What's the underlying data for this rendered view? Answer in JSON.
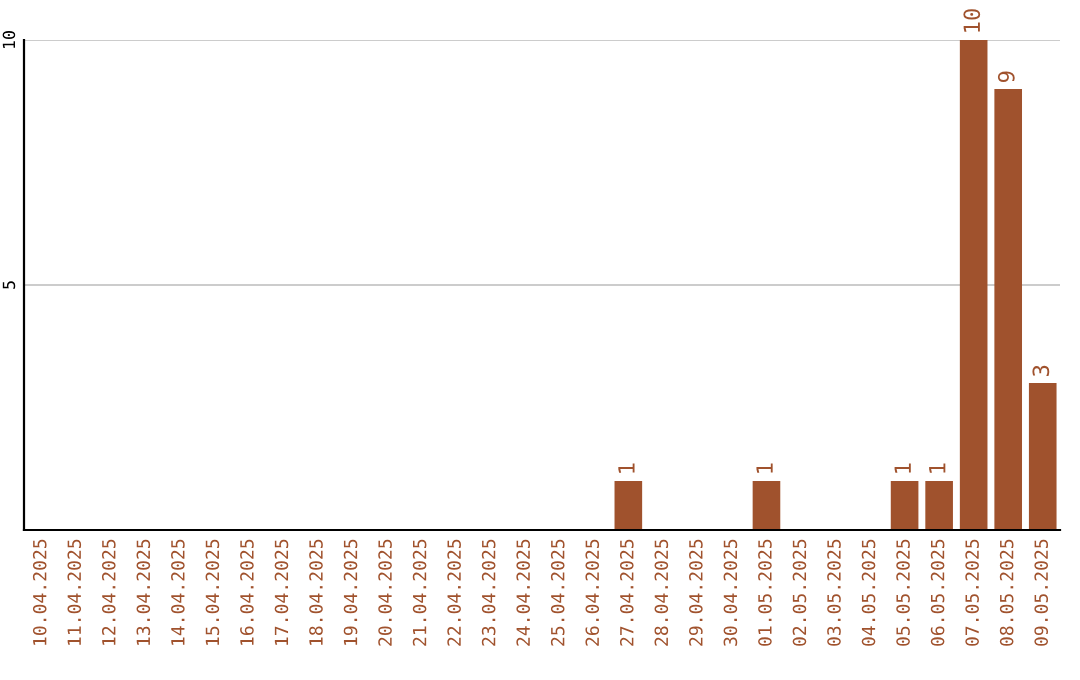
{
  "chart_data": {
    "type": "bar",
    "categories": [
      "10.04.2025",
      "11.04.2025",
      "12.04.2025",
      "13.04.2025",
      "14.04.2025",
      "15.04.2025",
      "16.04.2025",
      "17.04.2025",
      "18.04.2025",
      "19.04.2025",
      "20.04.2025",
      "21.04.2025",
      "22.04.2025",
      "23.04.2025",
      "24.04.2025",
      "25.04.2025",
      "26.04.2025",
      "27.04.2025",
      "28.04.2025",
      "29.04.2025",
      "30.04.2025",
      "01.05.2025",
      "02.05.2025",
      "03.05.2025",
      "04.05.2025",
      "05.05.2025",
      "06.05.2025",
      "07.05.2025",
      "08.05.2025",
      "09.05.2025"
    ],
    "values": [
      0,
      0,
      0,
      0,
      0,
      0,
      0,
      0,
      0,
      0,
      0,
      0,
      0,
      0,
      0,
      0,
      0,
      1,
      0,
      0,
      0,
      1,
      0,
      0,
      0,
      1,
      1,
      10,
      9,
      3
    ],
    "value_labels": [
      null,
      null,
      null,
      null,
      null,
      null,
      null,
      null,
      null,
      null,
      null,
      null,
      null,
      null,
      null,
      null,
      null,
      "1",
      null,
      null,
      null,
      "1",
      null,
      null,
      null,
      "1",
      "1",
      "10",
      "9",
      "3"
    ],
    "color": "#a0522d",
    "ylim": [
      0,
      10
    ],
    "yticks": [
      5,
      10
    ],
    "grid": "y"
  }
}
